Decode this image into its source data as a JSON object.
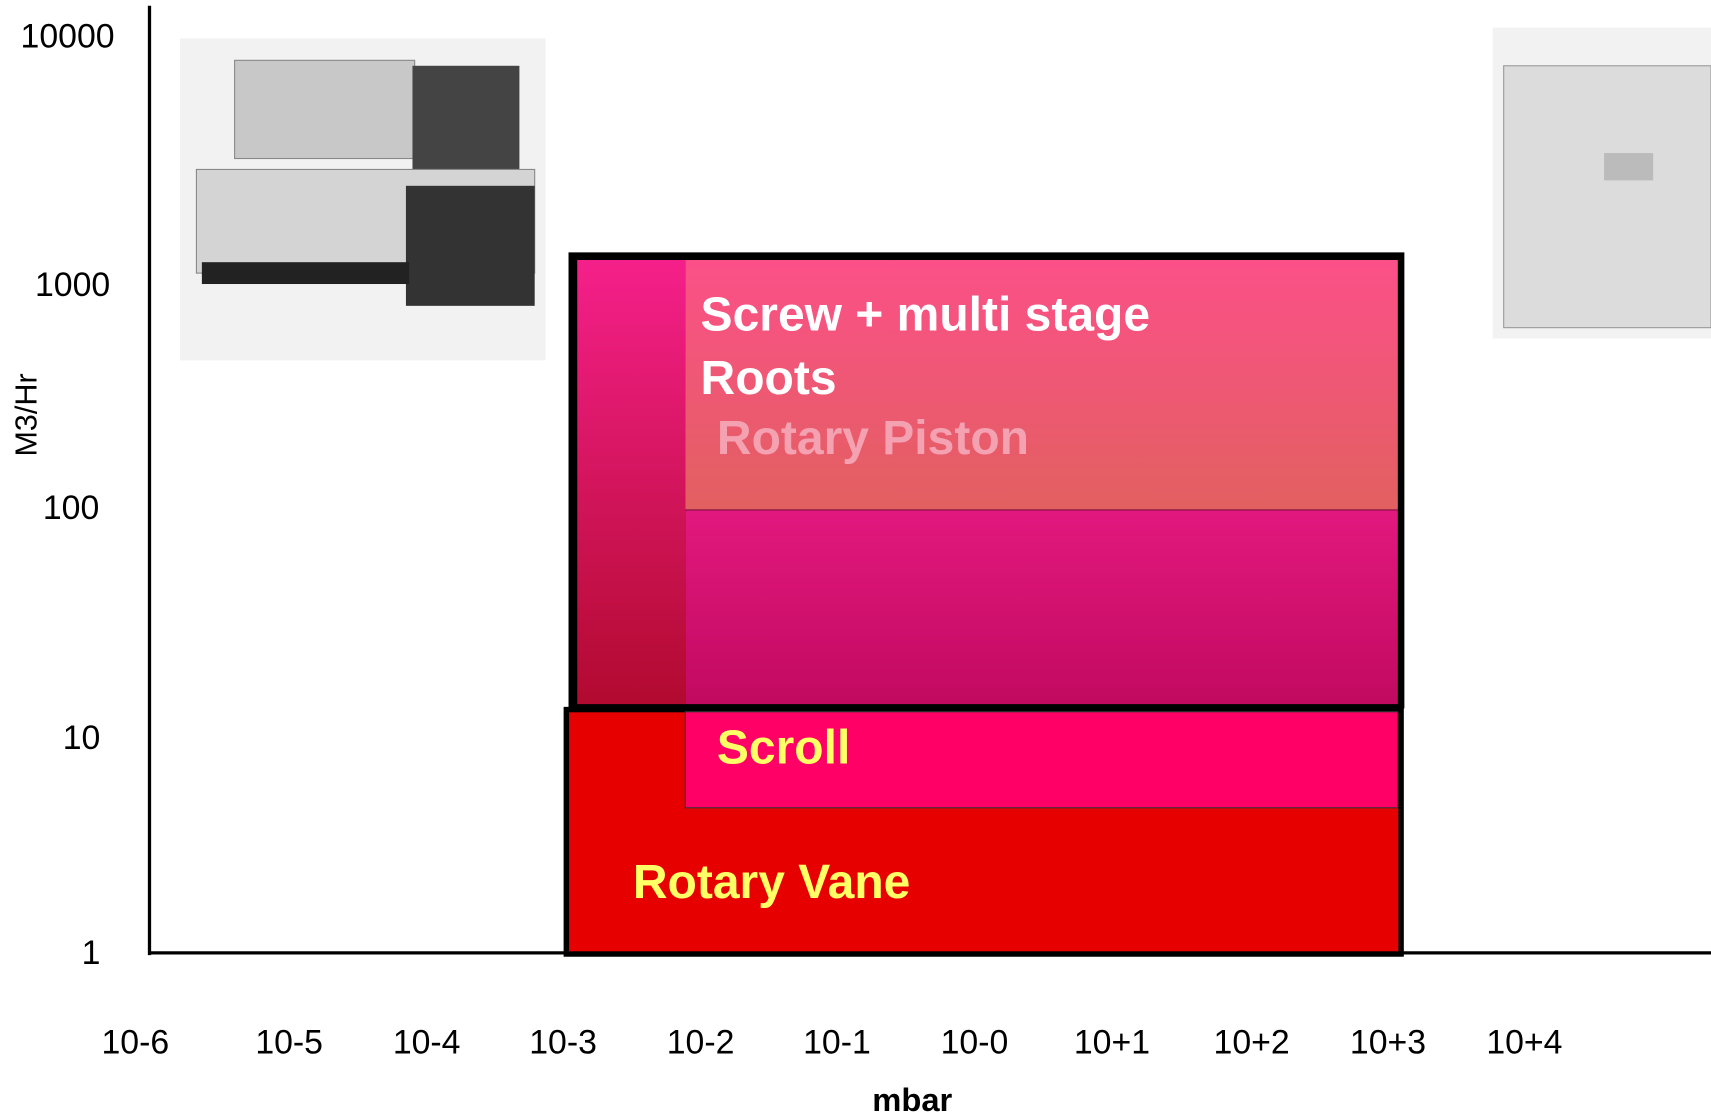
{
  "y_axis": {
    "label": "M3/Hr",
    "ticks": [
      "10000",
      "1000",
      "100",
      "10",
      "1"
    ]
  },
  "x_axis": {
    "label": "mbar",
    "ticks": [
      "10-6",
      "10-5",
      "10-4",
      "10-3",
      "10-2",
      "10-1",
      "10-0",
      "10+1",
      "10+2",
      "10+3",
      "10+4"
    ]
  },
  "regions": [
    {
      "label": "Screw + multi stage"
    },
    {
      "label": "Roots"
    },
    {
      "label": "Rotary Piston"
    },
    {
      "label": "Scroll"
    },
    {
      "label": "Rotary Vane"
    }
  ]
}
